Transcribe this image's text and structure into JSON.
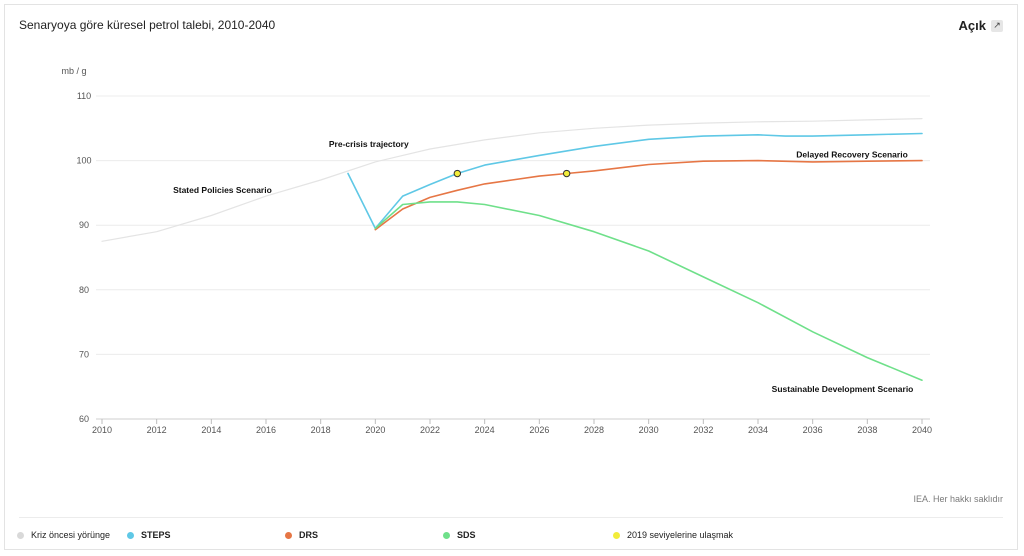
{
  "header": {
    "title": "Senaryoya göre küresel petrol talebi, 2010-2040",
    "expand_label": "Açık",
    "expand_icon": "expand-icon"
  },
  "credit": "IEA. Her hakkı saklıdır",
  "legend": [
    {
      "label": "Kriz öncesi yörünge",
      "color": "#d9d9d9"
    },
    {
      "label": "STEPS",
      "color": "#5fc8e6"
    },
    {
      "label": "DRS",
      "color": "#e67645"
    },
    {
      "label": "SDS",
      "color": "#6fe08a"
    },
    {
      "label": "2019 seviyelerine ulaşmak",
      "color": "#f2ec3a"
    }
  ],
  "chart_data": {
    "type": "line",
    "ylabel": "mb / g",
    "xlim": [
      2010,
      2040
    ],
    "ylim": [
      60,
      110
    ],
    "x_ticks": [
      2010,
      2012,
      2014,
      2016,
      2018,
      2020,
      2022,
      2024,
      2026,
      2028,
      2030,
      2032,
      2034,
      2036,
      2038,
      2040
    ],
    "y_ticks": [
      60,
      70,
      80,
      90,
      100,
      110
    ],
    "grid": true,
    "series": [
      {
        "name": "Kriz öncesi yörünge",
        "color": "#e4e4e4",
        "points": [
          [
            2010,
            87.5
          ],
          [
            2012,
            89.0
          ],
          [
            2014,
            91.5
          ],
          [
            2016,
            94.5
          ],
          [
            2018,
            97.0
          ],
          [
            2020,
            99.8
          ],
          [
            2022,
            101.8
          ],
          [
            2024,
            103.2
          ],
          [
            2026,
            104.3
          ],
          [
            2028,
            105.0
          ],
          [
            2030,
            105.5
          ],
          [
            2032,
            105.8
          ],
          [
            2034,
            106.0
          ],
          [
            2036,
            106.1
          ],
          [
            2038,
            106.3
          ],
          [
            2040,
            106.5
          ]
        ]
      },
      {
        "name": "STEPS",
        "color": "#5fc8e6",
        "points": [
          [
            2019,
            98.0
          ],
          [
            2020,
            89.5
          ],
          [
            2021,
            94.5
          ],
          [
            2022,
            96.3
          ],
          [
            2023,
            98.0
          ],
          [
            2024,
            99.3
          ],
          [
            2026,
            100.8
          ],
          [
            2028,
            102.2
          ],
          [
            2030,
            103.3
          ],
          [
            2032,
            103.8
          ],
          [
            2034,
            104.0
          ],
          [
            2035,
            103.8
          ],
          [
            2036,
            103.8
          ],
          [
            2038,
            104.0
          ],
          [
            2040,
            104.2
          ]
        ]
      },
      {
        "name": "DRS",
        "color": "#e67645",
        "points": [
          [
            2020,
            89.3
          ],
          [
            2021,
            92.5
          ],
          [
            2022,
            94.3
          ],
          [
            2023,
            95.4
          ],
          [
            2024,
            96.4
          ],
          [
            2025,
            97.0
          ],
          [
            2026,
            97.6
          ],
          [
            2027,
            98.0
          ],
          [
            2028,
            98.4
          ],
          [
            2030,
            99.4
          ],
          [
            2032,
            99.9
          ],
          [
            2034,
            100.0
          ],
          [
            2036,
            99.8
          ],
          [
            2038,
            99.9
          ],
          [
            2040,
            100.0
          ]
        ]
      },
      {
        "name": "SDS",
        "color": "#6fe08a",
        "points": [
          [
            2020,
            89.5
          ],
          [
            2021,
            93.2
          ],
          [
            2022,
            93.6
          ],
          [
            2023,
            93.6
          ],
          [
            2024,
            93.2
          ],
          [
            2026,
            91.5
          ],
          [
            2028,
            89.0
          ],
          [
            2030,
            86.0
          ],
          [
            2032,
            82.0
          ],
          [
            2034,
            78.0
          ],
          [
            2036,
            73.5
          ],
          [
            2038,
            69.5
          ],
          [
            2040,
            66.0
          ]
        ]
      }
    ],
    "markers": [
      {
        "series": "STEPS",
        "x": 2023,
        "y": 98.0,
        "fill": "#f2ec3a"
      },
      {
        "series": "DRS",
        "x": 2027,
        "y": 98.0,
        "fill": "#f2ec3a"
      }
    ],
    "annotations": [
      {
        "text": "Pre-crisis trajectory",
        "x": 2018.3,
        "y": 102.1
      },
      {
        "text": "Stated Policies Scenario",
        "x": 2012.6,
        "y": 95.0
      },
      {
        "text": "Delayed Recovery Scenario",
        "x": 2035.4,
        "y": 100.5
      },
      {
        "text": "Sustainable Development Scenario",
        "x": 2034.5,
        "y": 64.2
      }
    ]
  }
}
